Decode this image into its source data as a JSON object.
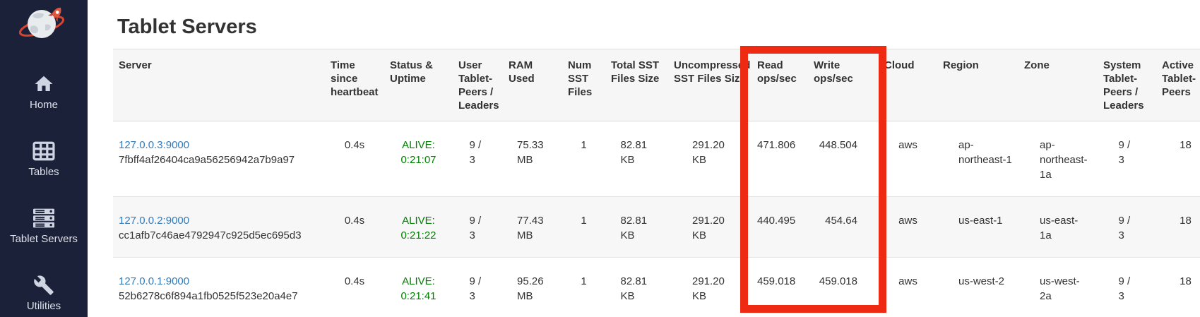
{
  "page": {
    "title": "Tablet Servers"
  },
  "sidebar": {
    "background_color": "#1b2138",
    "items": [
      {
        "label": "Home",
        "icon": "home-icon"
      },
      {
        "label": "Tables",
        "icon": "tables-icon"
      },
      {
        "label": "Tablet Servers",
        "icon": "tablet-servers-icon"
      },
      {
        "label": "Utilities",
        "icon": "utilities-icon"
      }
    ]
  },
  "table": {
    "columns": [
      "Server",
      "Time since heartbeat",
      "Status & Uptime",
      "User Tablet-Peers / Leaders",
      "RAM Used",
      "Num SST Files",
      "Total SST Files Size",
      "Uncompressed SST Files Size",
      "Read ops/sec",
      "Write ops/sec",
      "Cloud",
      "Region",
      "Zone",
      "System Tablet-Peers / Leaders",
      "Active Tablet-Peers"
    ],
    "rows": [
      {
        "server_address": "127.0.0.3:9000",
        "server_uuid": "7fbff4af26404ca9a56256942a7b9a97",
        "time_since_heartbeat": "0.4s",
        "status": "ALIVE:",
        "uptime": "0:21:07",
        "user_tablet_peers_leaders": "9 / 3",
        "ram_used": "75.33 MB",
        "num_sst_files": "1",
        "total_sst_files_size": "82.81 KB",
        "uncompressed_sst_files_size": "291.20 KB",
        "read_ops_sec": "471.806",
        "write_ops_sec": "448.504",
        "cloud": "aws",
        "region": "ap-northeast-1",
        "zone": "ap-northeast-1a",
        "system_tablet_peers_leaders": "9 / 3",
        "active_tablet_peers": "18"
      },
      {
        "server_address": "127.0.0.2:9000",
        "server_uuid": "cc1afb7c46ae4792947c925d5ec695d3",
        "time_since_heartbeat": "0.4s",
        "status": "ALIVE:",
        "uptime": "0:21:22",
        "user_tablet_peers_leaders": "9 / 3",
        "ram_used": "77.43 MB",
        "num_sst_files": "1",
        "total_sst_files_size": "82.81 KB",
        "uncompressed_sst_files_size": "291.20 KB",
        "read_ops_sec": "440.495",
        "write_ops_sec": "454.64",
        "cloud": "aws",
        "region": "us-east-1",
        "zone": "us-east-1a",
        "system_tablet_peers_leaders": "9 / 3",
        "active_tablet_peers": "18"
      },
      {
        "server_address": "127.0.0.1:9000",
        "server_uuid": "52b6278c6f894a1fb0525f523e20a4e7",
        "time_since_heartbeat": "0.4s",
        "status": "ALIVE:",
        "uptime": "0:21:41",
        "user_tablet_peers_leaders": "9 / 3",
        "ram_used": "95.26 MB",
        "num_sst_files": "1",
        "total_sst_files_size": "82.81 KB",
        "uncompressed_sst_files_size": "291.20 KB",
        "read_ops_sec": "459.018",
        "write_ops_sec": "459.018",
        "cloud": "aws",
        "region": "us-west-2",
        "zone": "us-west-2a",
        "system_tablet_peers_leaders": "9 / 3",
        "active_tablet_peers": "18"
      }
    ]
  },
  "annotation": {
    "type": "highlight-box",
    "color": "#ee2a12",
    "highlighted_columns": [
      "Read ops/sec",
      "Write ops/sec"
    ]
  },
  "colors": {
    "link_blue": "#337ab7",
    "alive_green": "#008000",
    "sidebar_navy": "#1b2138",
    "header_gray": "#f6f6f7",
    "stripe_gray": "#f7f7f8",
    "text": "#333333"
  }
}
